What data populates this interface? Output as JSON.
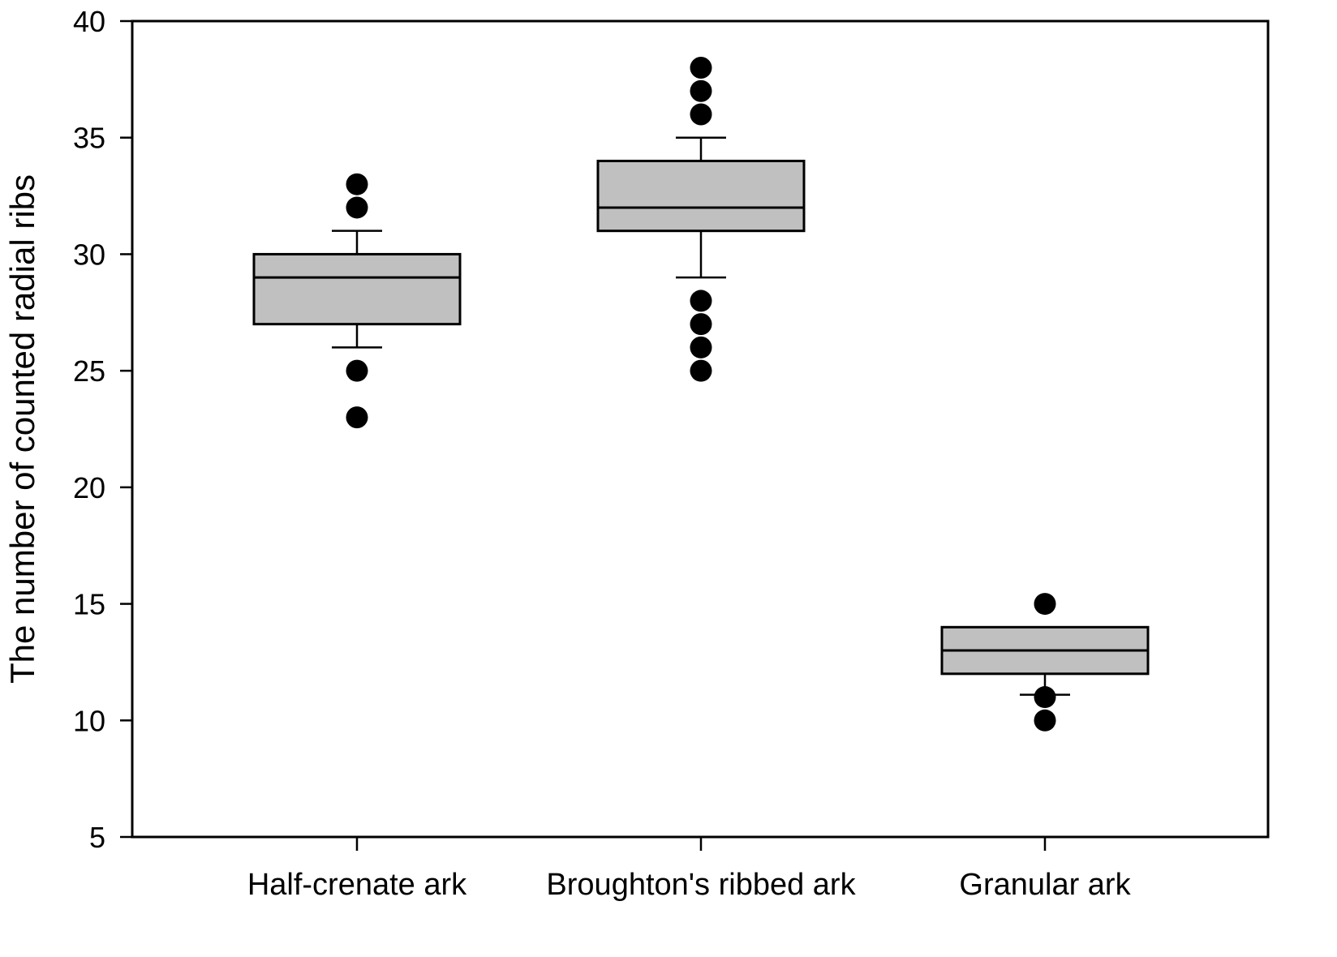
{
  "chart_data": {
    "type": "box",
    "title": "",
    "xlabel": "",
    "ylabel": "The number of counted radial ribs",
    "ylim": [
      5,
      40
    ],
    "yticks": [
      5,
      10,
      15,
      20,
      25,
      30,
      35,
      40
    ],
    "grid": false,
    "legend": null,
    "categories": [
      "Half-crenate ark",
      "Broughton's ribbed ark",
      "Granular ark"
    ],
    "series": [
      {
        "name": "Half-crenate ark",
        "whisker_low": 26,
        "q1": 27,
        "median": 29,
        "q3": 30,
        "whisker_high": 31,
        "outliers": [
          33,
          32,
          25,
          23
        ]
      },
      {
        "name": "Broughton's ribbed ark",
        "whisker_low": 29,
        "q1": 31,
        "median": 32,
        "q3": 34,
        "whisker_high": 35,
        "outliers": [
          38,
          37,
          36,
          28,
          27,
          26,
          25
        ]
      },
      {
        "name": "Granular ark",
        "whisker_low": 11.1,
        "q1": 12,
        "median": 13,
        "q3": 14,
        "whisker_high": 14,
        "outliers": [
          15,
          11,
          10
        ]
      }
    ],
    "colors": {
      "box_fill": "#c0c0c0",
      "line": "#000000",
      "outlier": "#000000",
      "background": "#ffffff"
    }
  }
}
